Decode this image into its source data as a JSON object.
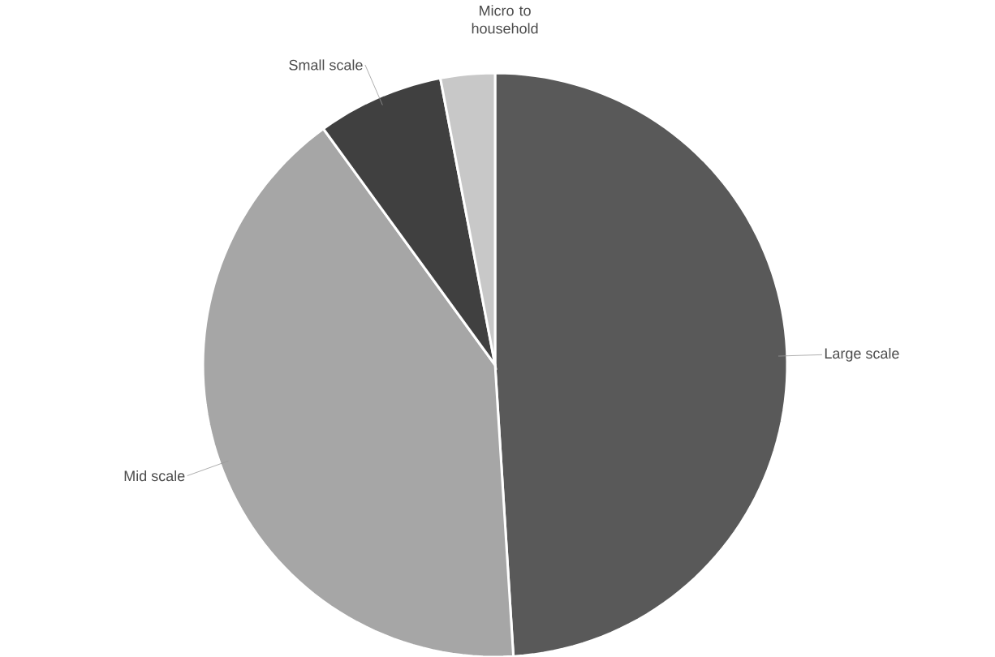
{
  "chart_data": {
    "type": "pie",
    "categories": [
      "Large scale",
      "Mid scale",
      "Small scale",
      "Micro to household"
    ],
    "values": [
      49,
      41,
      7,
      3
    ],
    "colors": [
      "#595959",
      "#a6a6a6",
      "#404040",
      "#c8c8c8"
    ]
  }
}
